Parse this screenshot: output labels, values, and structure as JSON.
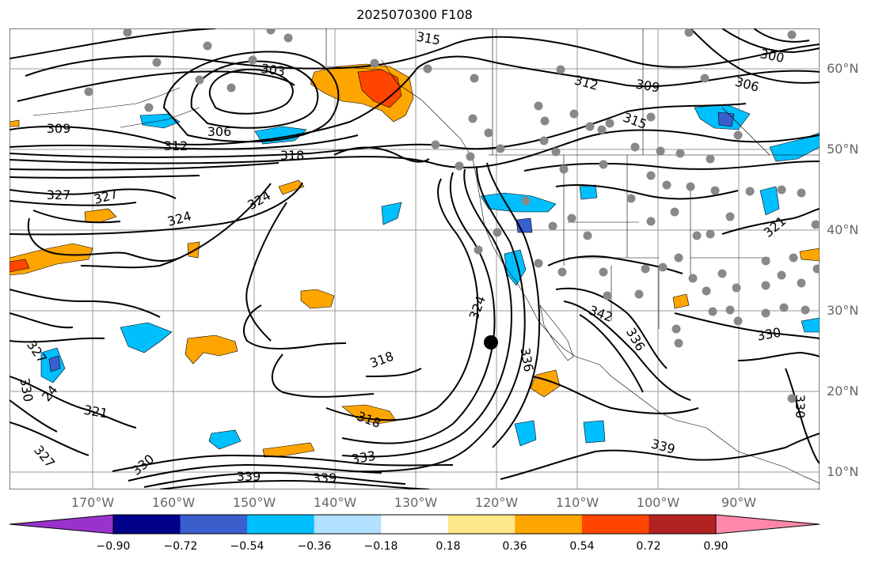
{
  "title": "2025070300 F108",
  "lat_labels": [
    "60°N",
    "50°N",
    "40°N",
    "30°N",
    "20°N",
    "10°N"
  ],
  "lon_labels": [
    "170°W",
    "160°W",
    "150°W",
    "140°W",
    "130°W",
    "120°W",
    "110°W",
    "100°W",
    "90°W"
  ],
  "contour_labels": [
    "315",
    "303",
    "312",
    "309",
    "306",
    "300",
    "309",
    "306",
    "312",
    "318",
    "327",
    "327",
    "324",
    "324",
    "315",
    "318",
    "324",
    "336",
    "342",
    "336",
    "330",
    "327",
    "330",
    "24",
    "321",
    "318",
    "327",
    "330",
    "333",
    "339",
    "339",
    "339",
    "330",
    "321"
  ],
  "colorbar": {
    "ticks": [
      "−0.90",
      "−0.72",
      "−0.54",
      "−0.36",
      "−0.18",
      "0.18",
      "0.36",
      "0.54",
      "0.72",
      "0.90"
    ],
    "colors": [
      "#9932cc",
      "#00008b",
      "#3a5fcd",
      "#00bfff",
      "#b2e0ff",
      "#ffffff",
      "#ffe88a",
      "#ffa500",
      "#ff4500",
      "#b22222",
      "#ff88aa"
    ]
  },
  "marker_colors": {
    "station": "#888888",
    "center": "#000000"
  }
}
